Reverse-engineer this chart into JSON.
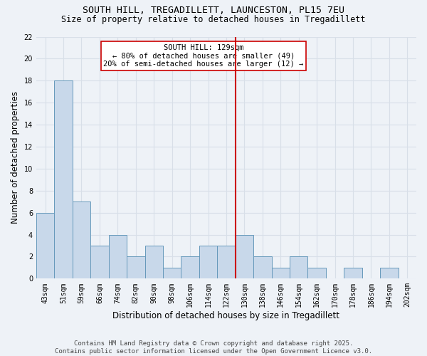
{
  "title_line1": "SOUTH HILL, TREGADILLETT, LAUNCESTON, PL15 7EU",
  "title_line2": "Size of property relative to detached houses in Tregadillett",
  "xlabel": "Distribution of detached houses by size in Tregadillett",
  "ylabel": "Number of detached properties",
  "footer_line1": "Contains HM Land Registry data © Crown copyright and database right 2025.",
  "footer_line2": "Contains public sector information licensed under the Open Government Licence v3.0.",
  "categories": [
    "43sqm",
    "51sqm",
    "59sqm",
    "66sqm",
    "74sqm",
    "82sqm",
    "90sqm",
    "98sqm",
    "106sqm",
    "114sqm",
    "122sqm",
    "130sqm",
    "138sqm",
    "146sqm",
    "154sqm",
    "162sqm",
    "170sqm",
    "178sqm",
    "186sqm",
    "194sqm",
    "202sqm"
  ],
  "values": [
    6,
    18,
    7,
    3,
    4,
    2,
    3,
    1,
    2,
    3,
    3,
    4,
    2,
    1,
    2,
    1,
    0,
    1,
    0,
    1,
    0
  ],
  "bar_color": "#c8d8ea",
  "bar_edge_color": "#6699bb",
  "vline_color": "#cc0000",
  "vline_index": 11,
  "annotation_text": "SOUTH HILL: 129sqm\n← 80% of detached houses are smaller (49)\n20% of semi-detached houses are larger (12) →",
  "annotation_box_color": "#ffffff",
  "annotation_box_edge": "#cc0000",
  "ylim": [
    0,
    22
  ],
  "yticks": [
    0,
    2,
    4,
    6,
    8,
    10,
    12,
    14,
    16,
    18,
    20,
    22
  ],
  "bg_color": "#eef2f7",
  "grid_color": "#d8dfe8",
  "title_fontsize": 9.5,
  "subtitle_fontsize": 8.5,
  "axis_label_fontsize": 8.5,
  "tick_fontsize": 7,
  "footer_fontsize": 6.5,
  "ann_fontsize": 7.5
}
